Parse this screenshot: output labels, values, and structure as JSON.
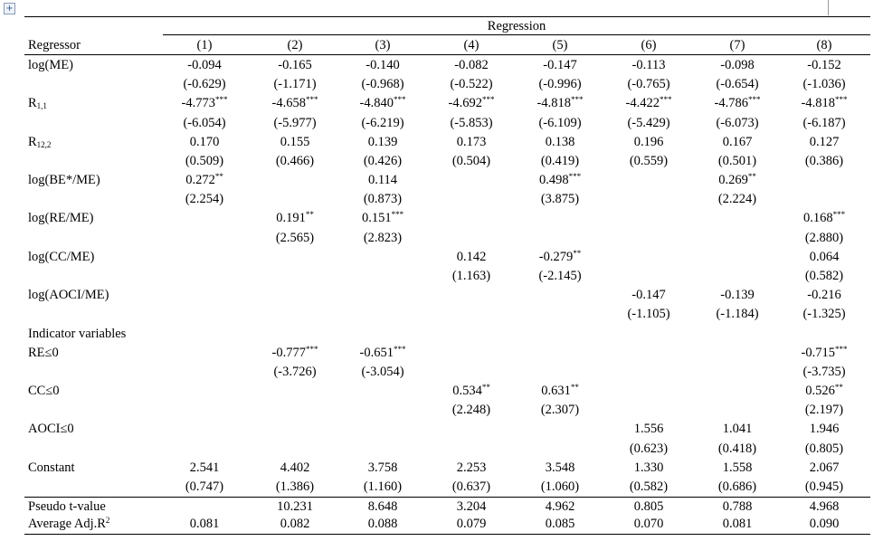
{
  "table": {
    "group_header": "Regression",
    "header": {
      "label": "Regressor",
      "columns": [
        "(1)",
        "(2)",
        "(3)",
        "(4)",
        "(5)",
        "(6)",
        "(7)",
        "(8)"
      ]
    },
    "rows": [
      {
        "label": "log(ME)",
        "coef": [
          "-0.094",
          "-0.165",
          "-0.140",
          "-0.082",
          "-0.147",
          "-0.113",
          "-0.098",
          "-0.152"
        ],
        "t": [
          "(-0.629)",
          "(-1.171)",
          "(-0.968)",
          "(-0.522)",
          "(-0.996)",
          "(-0.765)",
          "(-0.654)",
          "(-1.036)"
        ]
      },
      {
        "label": "R",
        "label_sub": "1,1",
        "coef": [
          {
            "value": "-4.773",
            "stars": "***"
          },
          {
            "value": "-4.658",
            "stars": "***"
          },
          {
            "value": "-4.840",
            "stars": "***"
          },
          {
            "value": "-4.692",
            "stars": "***"
          },
          {
            "value": "-4.818",
            "stars": "***"
          },
          {
            "value": "-4.422",
            "stars": "***"
          },
          {
            "value": "-4.786",
            "stars": "***"
          },
          {
            "value": "-4.818",
            "stars": "***"
          }
        ],
        "t": [
          "(-6.054)",
          "(-5.977)",
          "(-6.219)",
          "(-5.853)",
          "(-6.109)",
          "(-5.429)",
          "(-6.073)",
          "(-6.187)"
        ]
      },
      {
        "label": "R",
        "label_sub": "12,2",
        "coef": [
          "0.170",
          "0.155",
          "0.139",
          "0.173",
          "0.138",
          "0.196",
          "0.167",
          "0.127"
        ],
        "t": [
          "(0.509)",
          "(0.466)",
          "(0.426)",
          "(0.504)",
          "(0.419)",
          "(0.559)",
          "(0.501)",
          "(0.386)"
        ]
      },
      {
        "label": "log(BE*/ME)",
        "coef": [
          {
            "value": "0.272",
            "stars": "**"
          },
          null,
          "0.114",
          null,
          {
            "value": "0.498",
            "stars": "***"
          },
          null,
          {
            "value": "0.269",
            "stars": "**"
          },
          null
        ],
        "t": [
          "(2.254)",
          null,
          "(0.873)",
          null,
          "(3.875)",
          null,
          "(2.224)",
          null
        ]
      },
      {
        "label": "log(RE/ME)",
        "coef": [
          null,
          {
            "value": "0.191",
            "stars": "**"
          },
          {
            "value": "0.151",
            "stars": "***"
          },
          null,
          null,
          null,
          null,
          {
            "value": "0.168",
            "stars": "***"
          }
        ],
        "t": [
          null,
          "(2.565)",
          "(2.823)",
          null,
          null,
          null,
          null,
          "(2.880)"
        ]
      },
      {
        "label": "log(CC/ME)",
        "coef": [
          null,
          null,
          null,
          "0.142",
          {
            "value": "-0.279",
            "stars": "**"
          },
          null,
          null,
          "0.064"
        ],
        "t": [
          null,
          null,
          null,
          "(1.163)",
          "(-2.145)",
          null,
          null,
          "(0.582)"
        ]
      },
      {
        "label": "log(AOCI/ME)",
        "coef": [
          null,
          null,
          null,
          null,
          null,
          "-0.147",
          "-0.139",
          "-0.216"
        ],
        "t": [
          null,
          null,
          null,
          null,
          null,
          "(-1.105)",
          "(-1.184)",
          "(-1.325)"
        ]
      },
      {
        "label": "Indicator variables"
      },
      {
        "label": "RE≤0",
        "coef": [
          null,
          {
            "value": "-0.777",
            "stars": "***"
          },
          {
            "value": "-0.651",
            "stars": "***"
          },
          null,
          null,
          null,
          null,
          {
            "value": "-0.715",
            "stars": "***"
          }
        ],
        "t": [
          null,
          "(-3.726)",
          "(-3.054)",
          null,
          null,
          null,
          null,
          "(-3.735)"
        ]
      },
      {
        "label": "CC≤0",
        "coef": [
          null,
          null,
          null,
          {
            "value": "0.534",
            "stars": "**"
          },
          {
            "value": "0.631",
            "stars": "**"
          },
          null,
          null,
          {
            "value": "0.526",
            "stars": "**"
          }
        ],
        "t": [
          null,
          null,
          null,
          "(2.248)",
          "(2.307)",
          null,
          null,
          "(2.197)"
        ]
      },
      {
        "label": "AOCI≤0",
        "coef": [
          null,
          null,
          null,
          null,
          null,
          "1.556",
          "1.041",
          "1.946"
        ],
        "t": [
          null,
          null,
          null,
          null,
          null,
          "(0.623)",
          "(0.418)",
          "(0.805)"
        ]
      },
      {
        "label": "Constant",
        "coef": [
          "2.541",
          "4.402",
          "3.758",
          "2.253",
          "3.548",
          "1.330",
          "1.558",
          "2.067"
        ],
        "t": [
          "(0.747)",
          "(1.386)",
          "(1.160)",
          "(0.637)",
          "(1.060)",
          "(0.582)",
          "(0.686)",
          "(0.945)"
        ]
      }
    ],
    "footer": [
      {
        "label": "Pseudo t-value",
        "cells": [
          null,
          "10.231",
          "8.648",
          "3.204",
          "4.962",
          "0.805",
          "0.788",
          "4.968"
        ]
      },
      {
        "label": "Average Adj.R",
        "label_sup": "2",
        "cells": [
          "0.081",
          "0.082",
          "0.088",
          "0.079",
          "0.085",
          "0.070",
          "0.081",
          "0.090"
        ]
      }
    ]
  }
}
